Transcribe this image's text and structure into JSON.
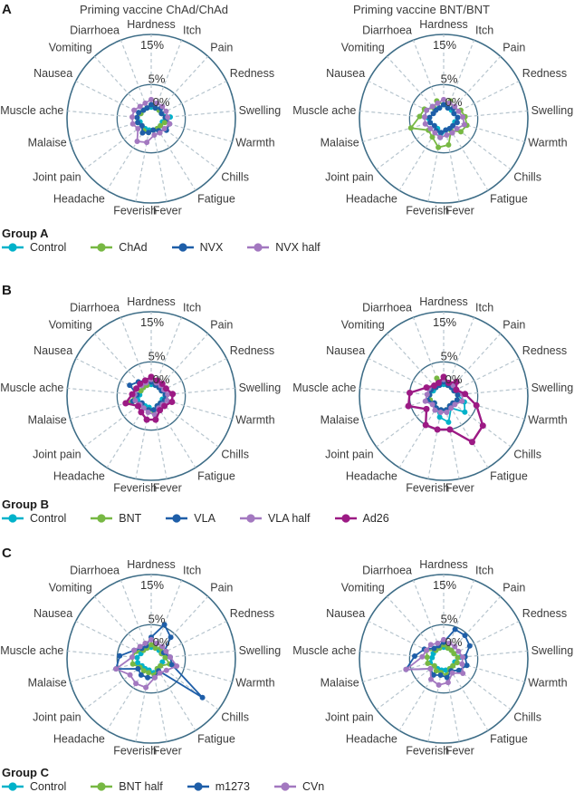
{
  "figure": {
    "panels": [
      {
        "letter": "A"
      },
      {
        "letter": "B"
      },
      {
        "letter": "C"
      }
    ],
    "column_titles": [
      "Priming vaccine ChAd/ChAd",
      "Priming vaccine BNT/BNT"
    ],
    "legends": [
      {
        "title": "Group A",
        "items": [
          {
            "label": "Control",
            "color": "#00b2ca"
          },
          {
            "label": "ChAd",
            "color": "#77b843"
          },
          {
            "label": "NVX",
            "color": "#1e5ea8"
          },
          {
            "label": "NVX half",
            "color": "#a378c0"
          }
        ]
      },
      {
        "title": "Group B",
        "items": [
          {
            "label": "Control",
            "color": "#00b2ca"
          },
          {
            "label": "BNT",
            "color": "#77b843"
          },
          {
            "label": "VLA",
            "color": "#1e5ea8"
          },
          {
            "label": "VLA half",
            "color": "#a378c0"
          },
          {
            "label": "Ad26",
            "color": "#9c1a84"
          }
        ]
      },
      {
        "title": "Group C",
        "items": [
          {
            "label": "Control",
            "color": "#00b2ca"
          },
          {
            "label": "BNT half",
            "color": "#77b843"
          },
          {
            "label": "m1273",
            "color": "#1e5ea8"
          },
          {
            "label": "CVn",
            "color": "#a378c0"
          }
        ]
      }
    ],
    "style_colors": {
      "ring": "#3e6d87",
      "spoke": "#b7c5ce",
      "text": "#3b3b3b"
    }
  },
  "chart_data": [
    {
      "type": "radar",
      "panel": "A",
      "position": "left",
      "title": "Priming vaccine ChAd/ChAd",
      "categories": [
        "Hardness",
        "Itch",
        "Pain",
        "Redness",
        "Swelling",
        "Warmth",
        "Chills",
        "Fatigue",
        "Fever",
        "Feverish",
        "Headache",
        "Joint pain",
        "Malaise",
        "Muscle ache",
        "Nausea",
        "Vomiting",
        "Diarrhoea"
      ],
      "rlim": [
        0,
        15
      ],
      "radial_ticks": [
        {
          "label": "0%",
          "value": 0
        },
        {
          "label": "5%",
          "value": 5
        },
        {
          "label": "15%",
          "value": 15
        }
      ],
      "series": [
        {
          "name": "Control",
          "color": "#00b2ca",
          "values": [
            0.5,
            0.5,
            0.5,
            0.5,
            2,
            0.5,
            0.5,
            0.5,
            0.5,
            0.5,
            0.5,
            0.5,
            0.5,
            1,
            0.5,
            0.5,
            0.5
          ]
        },
        {
          "name": "ChAd",
          "color": "#77b843",
          "values": [
            1,
            0.5,
            0.5,
            0.5,
            1,
            1,
            0.5,
            0.5,
            0.5,
            1,
            1,
            0.5,
            1,
            1,
            0.5,
            0.5,
            0.5
          ]
        },
        {
          "name": "NVX",
          "color": "#1e5ea8",
          "values": [
            1,
            0.5,
            1,
            0.5,
            1,
            2,
            2,
            1,
            0.5,
            1,
            1.5,
            0.5,
            1,
            1,
            1,
            0.5,
            0.5
          ]
        },
        {
          "name": "NVX half",
          "color": "#a378c0",
          "values": [
            2,
            1.5,
            1.5,
            1.5,
            1.5,
            2,
            1.5,
            1.5,
            1.5,
            3,
            3.5,
            1.5,
            2,
            2,
            2,
            1.5,
            1.5
          ]
        }
      ]
    },
    {
      "type": "radar",
      "panel": "A",
      "position": "right",
      "title": "Priming vaccine BNT/BNT",
      "categories": [
        "Hardness",
        "Itch",
        "Pain",
        "Redness",
        "Swelling",
        "Warmth",
        "Chills",
        "Fatigue",
        "Fever",
        "Feverish",
        "Headache",
        "Joint pain",
        "Malaise",
        "Muscle ache",
        "Nausea",
        "Vomiting",
        "Diarrhoea"
      ],
      "rlim": [
        0,
        15
      ],
      "radial_ticks": [
        {
          "label": "0%",
          "value": 0
        },
        {
          "label": "5%",
          "value": 5
        },
        {
          "label": "15%",
          "value": 15
        }
      ],
      "series": [
        {
          "name": "Control",
          "color": "#00b2ca",
          "values": [
            1,
            0.5,
            0.5,
            0.5,
            1,
            0.5,
            0.5,
            0.5,
            0.5,
            2,
            0.5,
            0.5,
            1,
            2,
            2,
            1.5,
            0.5
          ]
        },
        {
          "name": "ChAd",
          "color": "#77b843",
          "values": [
            1,
            2,
            1,
            2,
            2.5,
            3,
            2.5,
            1,
            3.5,
            4,
            2.5,
            2,
            5,
            3,
            2.5,
            1,
            2
          ]
        },
        {
          "name": "NVX",
          "color": "#1e5ea8",
          "values": [
            1,
            0.5,
            1,
            0.5,
            1,
            1,
            0.5,
            0.5,
            0.5,
            1,
            1,
            0.5,
            1,
            1,
            0.5,
            0.5,
            0.5
          ]
        },
        {
          "name": "NVX half",
          "color": "#a378c0",
          "values": [
            2,
            1.5,
            1.5,
            1.5,
            2,
            2.5,
            1.5,
            1.5,
            1.5,
            2,
            1.5,
            1.5,
            2,
            2,
            2,
            1.5,
            1.5
          ]
        }
      ]
    },
    {
      "type": "radar",
      "panel": "B",
      "position": "left",
      "title": "",
      "categories": [
        "Hardness",
        "Itch",
        "Pain",
        "Redness",
        "Swelling",
        "Warmth",
        "Chills",
        "Fatigue",
        "Fever",
        "Feverish",
        "Headache",
        "Joint pain",
        "Malaise",
        "Muscle ache",
        "Nausea",
        "Vomiting",
        "Diarrhoea"
      ],
      "rlim": [
        0,
        15
      ],
      "radial_ticks": [
        {
          "label": "0%",
          "value": 0
        },
        {
          "label": "5%",
          "value": 5
        },
        {
          "label": "15%",
          "value": 15
        }
      ],
      "series": [
        {
          "name": "Control",
          "color": "#00b2ca",
          "values": [
            0.5,
            0.5,
            0.5,
            0.5,
            1,
            0.5,
            0.5,
            0.5,
            1,
            0.5,
            0.5,
            0.5,
            1,
            0.5,
            0.5,
            0.5,
            0.5
          ]
        },
        {
          "name": "BNT",
          "color": "#77b843",
          "values": [
            1,
            0.5,
            0.5,
            0.5,
            1,
            1,
            0.5,
            0.5,
            1.5,
            1,
            1,
            1.5,
            3,
            1,
            0.5,
            0.5,
            0.5
          ]
        },
        {
          "name": "VLA",
          "color": "#1e5ea8",
          "values": [
            1,
            0.5,
            0.5,
            0.5,
            1,
            1,
            0.5,
            0.5,
            1,
            1,
            1,
            0.5,
            2,
            1,
            3,
            2,
            1.5
          ]
        },
        {
          "name": "VLA half",
          "color": "#a378c0",
          "values": [
            1.5,
            1,
            1,
            1,
            1.5,
            1.5,
            1,
            1,
            2,
            1.5,
            1,
            1,
            1.5,
            1.5,
            1.5,
            1,
            1
          ]
        },
        {
          "name": "Ad26",
          "color": "#9c1a84",
          "values": [
            2,
            1.5,
            1.5,
            1.5,
            2.5,
            2.5,
            1.5,
            1.5,
            3,
            3,
            2,
            1.5,
            3.5,
            2,
            1.5,
            1.5,
            1.5
          ]
        }
      ]
    },
    {
      "type": "radar",
      "panel": "B",
      "position": "right",
      "title": "",
      "categories": [
        "Hardness",
        "Itch",
        "Pain",
        "Redness",
        "Swelling",
        "Warmth",
        "Chills",
        "Fatigue",
        "Fever",
        "Feverish",
        "Headache",
        "Joint pain",
        "Malaise",
        "Muscle ache",
        "Nausea",
        "Vomiting",
        "Diarrhoea"
      ],
      "rlim": [
        0,
        15
      ],
      "radial_ticks": [
        {
          "label": "0%",
          "value": 0
        },
        {
          "label": "5%",
          "value": 5
        },
        {
          "label": "15%",
          "value": 15
        }
      ],
      "series": [
        {
          "name": "Control",
          "color": "#00b2ca",
          "values": [
            0.5,
            0.5,
            0.5,
            0.5,
            1,
            2.5,
            3.5,
            1,
            3.5,
            2.5,
            1,
            0.5,
            1,
            1,
            0.5,
            0.5,
            0.5
          ]
        },
        {
          "name": "BNT",
          "color": "#77b843",
          "values": [
            1,
            0.5,
            0.5,
            0.5,
            1,
            1,
            0.5,
            0.5,
            1,
            1,
            1,
            0.5,
            1,
            1,
            1,
            0.5,
            2
          ]
        },
        {
          "name": "VLA",
          "color": "#1e5ea8",
          "values": [
            1,
            0.5,
            0.5,
            0.5,
            1,
            1,
            0.5,
            0.5,
            1,
            1,
            1,
            0.5,
            1.5,
            1,
            1,
            0.5,
            0.5
          ]
        },
        {
          "name": "VLA half",
          "color": "#a378c0",
          "values": [
            1.5,
            1,
            1,
            1,
            2,
            2,
            1,
            1,
            1.5,
            1.5,
            1.5,
            1,
            2,
            1.5,
            1.5,
            1,
            1
          ]
        },
        {
          "name": "Ad26",
          "color": "#9c1a84",
          "values": [
            2,
            1,
            2,
            1,
            2.5,
            5,
            8,
            9,
            5,
            5,
            5,
            2.5,
            5.5,
            5,
            2,
            1,
            1
          ]
        }
      ]
    },
    {
      "type": "radar",
      "panel": "C",
      "position": "left",
      "title": "",
      "categories": [
        "Hardness",
        "Itch",
        "Pain",
        "Redness",
        "Swelling",
        "Warmth",
        "Chills",
        "Fatigue",
        "Fever",
        "Feverish",
        "Headache",
        "Joint pain",
        "Malaise",
        "Muscle ache",
        "Nausea",
        "Vomiting",
        "Diarrhoea"
      ],
      "rlim": [
        0,
        15
      ],
      "radial_ticks": [
        {
          "label": "0%",
          "value": 0
        },
        {
          "label": "5%",
          "value": 5
        },
        {
          "label": "15%",
          "value": 15
        }
      ],
      "series": [
        {
          "name": "Control",
          "color": "#00b2ca",
          "values": [
            0.5,
            0.5,
            0.5,
            0.5,
            1,
            0.5,
            0.5,
            0.5,
            1,
            0.5,
            0.5,
            0.5,
            1,
            1,
            0.5,
            0.5,
            0.5
          ]
        },
        {
          "name": "BNT half",
          "color": "#77b843",
          "values": [
            1,
            0.5,
            1,
            0.5,
            1,
            2,
            0.5,
            0.5,
            1.5,
            1,
            1,
            1,
            2,
            2,
            1.5,
            0.5,
            0.5
          ]
        },
        {
          "name": "m1273",
          "color": "#1e5ea8",
          "values": [
            2.5,
            5.5,
            4,
            1,
            2,
            2.5,
            11,
            1,
            2,
            2,
            2,
            1.5,
            5.5,
            4.5,
            2,
            1,
            1
          ]
        },
        {
          "name": "CVn",
          "color": "#a378c0",
          "values": [
            2,
            1.5,
            1.5,
            1.5,
            2,
            3.5,
            2,
            1.5,
            2,
            4,
            4,
            3.5,
            5.5,
            2,
            2,
            1.5,
            1.5
          ]
        }
      ]
    },
    {
      "type": "radar",
      "panel": "C",
      "position": "right",
      "title": "",
      "categories": [
        "Hardness",
        "Itch",
        "Pain",
        "Redness",
        "Swelling",
        "Warmth",
        "Chills",
        "Fatigue",
        "Fever",
        "Feverish",
        "Headache",
        "Joint pain",
        "Malaise",
        "Muscle ache",
        "Nausea",
        "Vomiting",
        "Diarrhoea"
      ],
      "rlim": [
        0,
        15
      ],
      "radial_ticks": [
        {
          "label": "0%",
          "value": 0
        },
        {
          "label": "5%",
          "value": 5
        },
        {
          "label": "15%",
          "value": 15
        }
      ],
      "series": [
        {
          "name": "Control",
          "color": "#00b2ca",
          "values": [
            0.5,
            0.5,
            0.5,
            0.5,
            1.5,
            0.5,
            0.5,
            0.5,
            0.5,
            0.5,
            0.5,
            0.5,
            1,
            0.5,
            0.5,
            0.5,
            0.5
          ]
        },
        {
          "name": "BNT half",
          "color": "#77b843",
          "values": [
            1,
            0.5,
            0.5,
            0.5,
            1,
            1,
            0.5,
            0.5,
            1.5,
            1,
            1,
            0.5,
            1.5,
            1.5,
            2,
            0.5,
            0.5
          ]
        },
        {
          "name": "m1273",
          "color": "#1e5ea8",
          "values": [
            1.5,
            4.5,
            4.5,
            4,
            2.5,
            3,
            2,
            1,
            2,
            1.5,
            2,
            1.5,
            6,
            4,
            2.5,
            1,
            1
          ]
        },
        {
          "name": "CVn",
          "color": "#a378c0",
          "values": [
            2,
            1.5,
            1.5,
            1.5,
            2,
            2,
            3,
            1.5,
            3,
            3.5,
            3,
            1.5,
            6,
            2.5,
            2,
            2,
            1.5
          ]
        }
      ]
    }
  ]
}
